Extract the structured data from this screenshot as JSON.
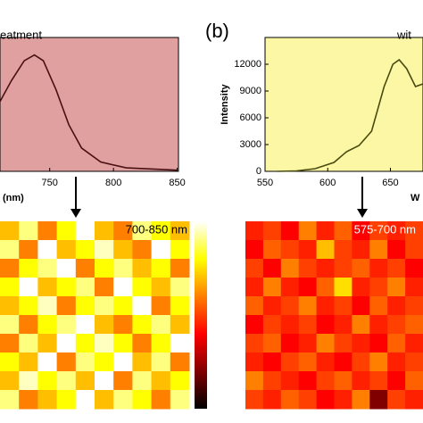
{
  "panel_label": "(b)",
  "chart_data": [
    {
      "type": "line",
      "title": "eatment",
      "xlabel": "(nm)",
      "background": "#e0a0a0",
      "color": "#4a1010",
      "x": [
        711,
        720,
        730,
        738,
        745,
        755,
        765,
        775,
        790,
        810,
        850
      ],
      "values": [
        0.6,
        0.78,
        0.95,
        1.0,
        0.95,
        0.7,
        0.4,
        0.2,
        0.08,
        0.03,
        0.01
      ],
      "xlim": [
        711,
        851
      ],
      "ylim": [
        0,
        1.15
      ],
      "xticks": [
        750,
        800,
        850
      ]
    },
    {
      "type": "line",
      "title": "wit",
      "xlabel": "W",
      "ylabel": "Intensity",
      "background": "#fbf7a4",
      "color": "#4a4a10",
      "x": [
        560,
        575,
        590,
        605,
        615,
        625,
        635,
        645,
        652,
        657,
        663,
        670,
        676
      ],
      "values": [
        0,
        50,
        300,
        1000,
        2200,
        2900,
        4500,
        9500,
        12000,
        12500,
        11500,
        9500,
        9800
      ],
      "xlim": [
        550,
        676
      ],
      "ylim": [
        0,
        15000
      ],
      "xticks": [
        550,
        600,
        650
      ],
      "yticks": [
        0,
        3000,
        6000,
        9000,
        12000
      ]
    },
    {
      "type": "heatmap",
      "label": "700-850 nm",
      "colorbar": true,
      "values": [
        [
          0.7,
          0.9,
          0.6,
          0.8,
          1.0,
          0.7,
          0.6,
          0.9,
          0.8,
          0.7
        ],
        [
          0.9,
          0.6,
          1.0,
          0.7,
          0.8,
          0.95,
          0.7,
          0.6,
          1.0,
          0.8
        ],
        [
          0.6,
          0.8,
          0.9,
          1.0,
          0.6,
          0.8,
          0.9,
          0.7,
          0.8,
          0.6
        ],
        [
          0.8,
          1.0,
          0.7,
          0.8,
          0.9,
          0.6,
          1.0,
          0.8,
          0.7,
          0.9
        ],
        [
          0.7,
          0.8,
          0.95,
          0.6,
          0.8,
          0.9,
          0.8,
          1.0,
          0.6,
          0.8
        ],
        [
          0.9,
          0.6,
          0.8,
          0.9,
          1.0,
          0.7,
          0.6,
          0.8,
          0.9,
          0.7
        ],
        [
          0.6,
          0.9,
          0.7,
          1.0,
          0.8,
          0.95,
          0.8,
          0.6,
          0.8,
          1.0
        ],
        [
          0.8,
          0.7,
          1.0,
          0.6,
          0.9,
          0.8,
          1.0,
          0.7,
          0.9,
          0.6
        ],
        [
          0.7,
          0.95,
          0.8,
          0.9,
          0.7,
          1.0,
          0.6,
          0.9,
          0.7,
          0.8
        ],
        [
          0.9,
          0.6,
          0.7,
          0.8,
          1.0,
          0.7,
          0.9,
          0.8,
          0.6,
          0.9
        ]
      ]
    },
    {
      "type": "heatmap",
      "label": "575-700 nm",
      "colorbar": false,
      "values": [
        [
          0.45,
          0.5,
          0.4,
          0.6,
          0.45,
          0.55,
          0.4,
          0.5,
          0.45,
          0.5
        ],
        [
          0.4,
          0.55,
          0.5,
          0.45,
          0.7,
          0.5,
          0.45,
          0.6,
          0.4,
          0.5
        ],
        [
          0.5,
          0.4,
          0.6,
          0.5,
          0.45,
          0.5,
          0.55,
          0.45,
          0.5,
          0.4
        ],
        [
          0.45,
          0.6,
          0.45,
          0.4,
          0.55,
          0.75,
          0.45,
          0.5,
          0.6,
          0.45
        ],
        [
          0.55,
          0.45,
          0.5,
          0.6,
          0.45,
          0.5,
          0.4,
          0.55,
          0.45,
          0.5
        ],
        [
          0.4,
          0.5,
          0.45,
          0.5,
          0.4,
          0.45,
          0.6,
          0.45,
          0.5,
          0.55
        ],
        [
          0.5,
          0.55,
          0.4,
          0.45,
          0.6,
          0.5,
          0.45,
          0.4,
          0.55,
          0.45
        ],
        [
          0.45,
          0.4,
          0.5,
          0.55,
          0.45,
          0.4,
          0.5,
          0.6,
          0.45,
          0.5
        ],
        [
          0.6,
          0.5,
          0.45,
          0.4,
          0.5,
          0.55,
          0.45,
          0.5,
          0.4,
          0.55
        ],
        [
          0.5,
          0.45,
          0.55,
          0.5,
          0.4,
          0.45,
          0.6,
          0.2,
          0.5,
          0.45
        ]
      ]
    }
  ]
}
